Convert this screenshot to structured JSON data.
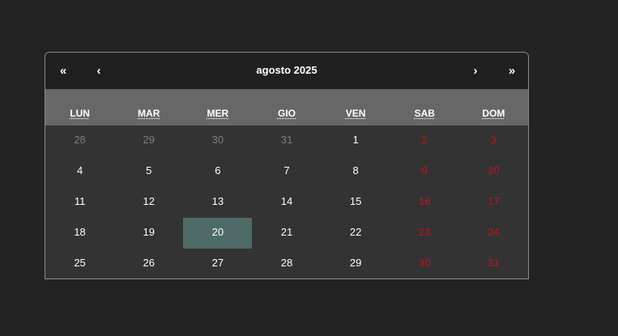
{
  "header": {
    "prev_year": "«",
    "prev_month": "‹",
    "title": "agosto 2025",
    "next_month": "›",
    "next_year": "»"
  },
  "weekdays": [
    "LUN",
    "MAR",
    "MER",
    "GIO",
    "VEN",
    "SAB",
    "DOM"
  ],
  "weeks": [
    [
      "28",
      "29",
      "30",
      "31",
      "1",
      "2",
      "3"
    ],
    [
      "4",
      "5",
      "6",
      "7",
      "8",
      "9",
      "10"
    ],
    [
      "11",
      "12",
      "13",
      "14",
      "15",
      "16",
      "17"
    ],
    [
      "18",
      "19",
      "20",
      "21",
      "22",
      "23",
      "24"
    ],
    [
      "25",
      "26",
      "27",
      "28",
      "29",
      "30",
      "31"
    ]
  ],
  "selected_day": "20",
  "colors": {
    "weekend": "#c1121c",
    "selected": "#4e6b67",
    "muted": "#7d7d7d"
  }
}
